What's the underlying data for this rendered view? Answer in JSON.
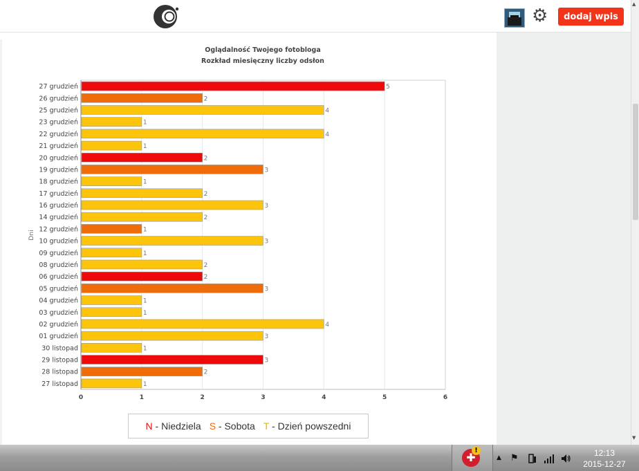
{
  "header": {
    "add_button_label": "dodaj wpis",
    "icons": [
      "camera-logo-icon",
      "avatar",
      "gear-icon"
    ]
  },
  "chart_data": {
    "type": "bar",
    "orientation": "horizontal",
    "title": "Oglądalność Twojego fotobloga",
    "subtitle": "Rozkład miesięczny liczby odsłon",
    "ylabel": "Dni",
    "xlabel": "",
    "xlim": [
      0,
      6
    ],
    "x_ticks": [
      "0",
      "1",
      "2",
      "3",
      "4",
      "5",
      "6"
    ],
    "grid": true,
    "legend_position": "bottom",
    "day_type_colors": {
      "N": "#ee0a0a",
      "S": "#ee6c0a",
      "T": "#fcc40a"
    },
    "categories": [
      "27 grudzień",
      "26 grudzień",
      "25 grudzień",
      "23 grudzień",
      "22 grudzień",
      "21 grudzień",
      "20 grudzień",
      "19 grudzień",
      "18 grudzień",
      "17 grudzień",
      "16 grudzień",
      "14 grudzień",
      "12 grudzień",
      "10 grudzień",
      "09 grudzień",
      "08 grudzień",
      "06 grudzień",
      "05 grudzień",
      "04 grudzień",
      "03 grudzień",
      "02 grudzień",
      "01 grudzień",
      "30 listopad",
      "29 listopad",
      "28 listopad",
      "27 listopad"
    ],
    "values": [
      5,
      2,
      4,
      1,
      4,
      1,
      2,
      3,
      1,
      2,
      3,
      2,
      1,
      3,
      1,
      2,
      2,
      3,
      1,
      1,
      4,
      3,
      1,
      3,
      2,
      1
    ],
    "day_types": [
      "N",
      "S",
      "T",
      "T",
      "T",
      "T",
      "N",
      "S",
      "T",
      "T",
      "T",
      "T",
      "S",
      "T",
      "T",
      "T",
      "N",
      "S",
      "T",
      "T",
      "T",
      "T",
      "T",
      "N",
      "S",
      "T"
    ],
    "data_labels": [
      "5",
      "2",
      "4",
      "1",
      "4",
      "1",
      "2",
      "3",
      "1",
      "2",
      "3",
      "2",
      "1",
      "3",
      "1",
      "2",
      "2",
      "3",
      "1",
      "1",
      "4",
      "3",
      "1",
      "3",
      "2",
      "1"
    ]
  },
  "legend": [
    {
      "key": "N",
      "label": " - Niedziela",
      "color": "#ee0a0a"
    },
    {
      "key": "S",
      "label": " - Sobota",
      "color": "#ee6c0a"
    },
    {
      "key": "T",
      "label": " - Dzień powszedni",
      "color": "#fcc40a"
    }
  ],
  "taskbar": {
    "time": "12:13",
    "date": "2015-12-27",
    "warning_badge": "!",
    "icons": [
      "app-tray-icon",
      "show-hidden-arrow-icon",
      "flag-icon",
      "power-icon",
      "signal-icon",
      "volume-icon"
    ]
  }
}
